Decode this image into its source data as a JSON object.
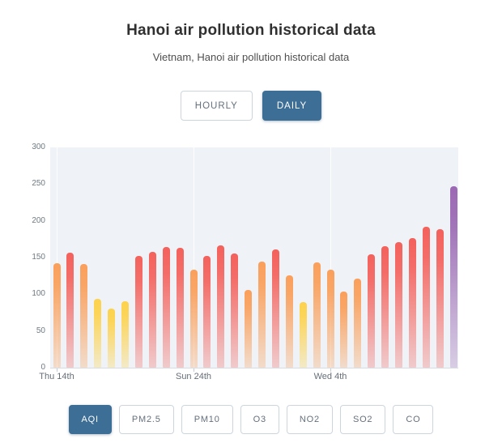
{
  "header": {
    "title": "Hanoi air pollution historical data",
    "subtitle": "Vietnam, Hanoi air pollution historical data"
  },
  "period_toggle": {
    "options": [
      {
        "label": "HOURLY",
        "active": false
      },
      {
        "label": "DAILY",
        "active": true
      }
    ]
  },
  "pollutant_tabs": {
    "options": [
      {
        "label": "AQI",
        "active": true
      },
      {
        "label": "PM2.5",
        "active": false
      },
      {
        "label": "PM10",
        "active": false
      },
      {
        "label": "O3",
        "active": false
      },
      {
        "label": "NO2",
        "active": false
      },
      {
        "label": "SO2",
        "active": false
      },
      {
        "label": "CO",
        "active": false
      }
    ]
  },
  "chart_data": {
    "type": "bar",
    "title": "Hanoi air pollution historical data",
    "series_label": "AQI (daily)",
    "values": [
      142,
      157,
      141,
      94,
      81,
      91,
      152,
      158,
      164,
      163,
      133,
      152,
      167,
      156,
      106,
      145,
      161,
      126,
      89,
      143,
      133,
      104,
      121,
      154,
      166,
      171,
      177,
      192,
      189,
      247
    ],
    "x_tick_labels": [
      {
        "index": 0,
        "label": "Thu 14th"
      },
      {
        "index": 10,
        "label": "Sun 24th"
      },
      {
        "index": 20,
        "label": "Wed 4th"
      }
    ],
    "y_ticks": [
      0,
      50,
      100,
      150,
      200,
      250,
      300
    ],
    "ylim": [
      0,
      300
    ],
    "legend": "none",
    "grid": "faint vertical lines at x ticks only",
    "plot_background": "#eff3f7",
    "aqi_color_scale": [
      {
        "max": 100,
        "name": "moderate-yellow",
        "rgb": "253,210,76"
      },
      {
        "max": 150,
        "name": "sensitive-orange",
        "rgb": "250,159,91"
      },
      {
        "max": 200,
        "name": "unhealthy-red",
        "rgb": "244,97,92"
      },
      {
        "max": 300,
        "name": "very-unhealthy-purple",
        "rgb": "155,105,179"
      }
    ]
  },
  "colors": {
    "accent": "#3d6e96",
    "button_border": "#ccd5dd",
    "button_text": "#64707d",
    "axis_label": "#6f7983"
  }
}
